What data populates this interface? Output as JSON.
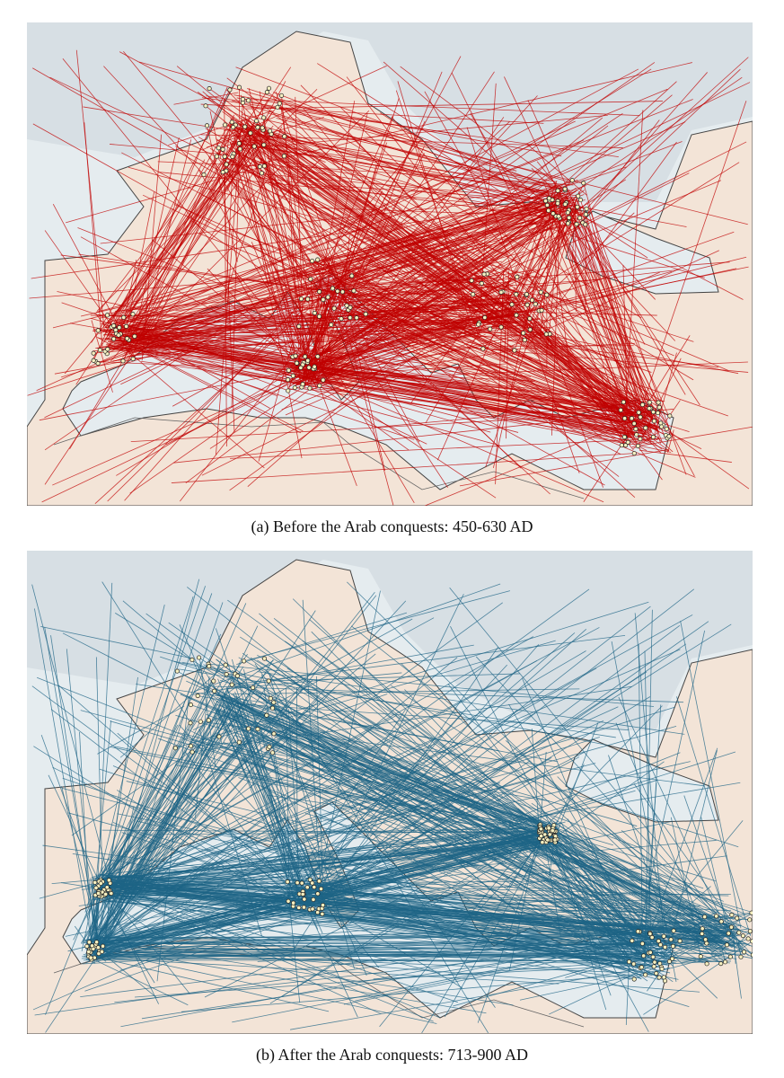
{
  "figures": [
    {
      "caption": "(a) Before the Arab conquests: 450-630 AD"
    },
    {
      "caption": "(b) After the Arab conquests: 713-900 AD"
    }
  ]
}
